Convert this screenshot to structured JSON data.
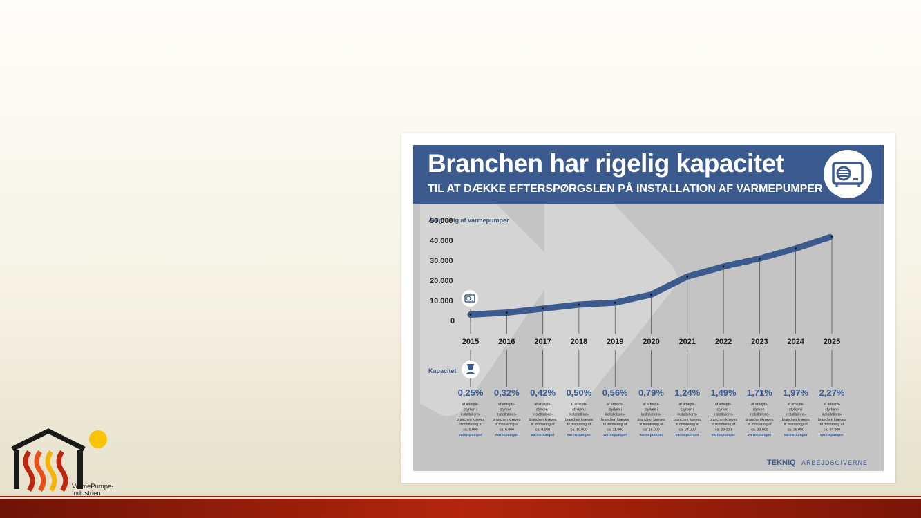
{
  "logo": {
    "text_line1": "VarmePumpe-",
    "text_line2": "Industrien"
  },
  "infographic": {
    "title": "Branchen har rigelig kapacitet",
    "subtitle": "TIL AT DÆKKE EFTERSPØRGSLEN PÅ INSTALLATION AF VARMEPUMPER",
    "header_icon": "heat-pump-icon",
    "brand": "TEKNIQ",
    "brand_suffix": "ARBEJDSGIVERNE"
  },
  "colors": {
    "accent": "#3b5a8e",
    "background": "#c4c4c4",
    "bar": "#b3250c"
  },
  "chart_data": {
    "type": "line",
    "ylabel": "Årligt salg af varmepumper",
    "ytick_labels": [
      "0",
      "10.000",
      "20.000",
      "30.000",
      "40.000",
      "50.000"
    ],
    "ylim": [
      0,
      50000
    ],
    "x": [
      "2015",
      "2016",
      "2017",
      "2018",
      "2019",
      "2020",
      "2021",
      "2022",
      "2023",
      "2024",
      "2025"
    ],
    "series": [
      {
        "style": "solid",
        "values": [
          5000,
          6000,
          8000,
          10000,
          11000,
          15000,
          24000,
          29000,
          null,
          null,
          null
        ]
      },
      {
        "style": "dashed",
        "values": [
          null,
          null,
          null,
          null,
          null,
          null,
          null,
          29000,
          33000,
          38000,
          44000
        ]
      }
    ],
    "capacity_label": "Kapacitet",
    "capacity": [
      {
        "year": "2015",
        "pct": "0,25%",
        "count": "ca. 5.000"
      },
      {
        "year": "2016",
        "pct": "0,32%",
        "count": "ca. 6.000"
      },
      {
        "year": "2017",
        "pct": "0,42%",
        "count": "ca. 8.000"
      },
      {
        "year": "2018",
        "pct": "0,50%",
        "count": "ca. 10.000"
      },
      {
        "year": "2019",
        "pct": "0,56%",
        "count": "ca. 11.000"
      },
      {
        "year": "2020",
        "pct": "0,79%",
        "count": "ca. 15.000"
      },
      {
        "year": "2021",
        "pct": "1,24%",
        "count": "ca. 24.000"
      },
      {
        "year": "2022",
        "pct": "1,49%",
        "count": "ca. 29.000"
      },
      {
        "year": "2023",
        "pct": "1,71%",
        "count": "ca. 33.000"
      },
      {
        "year": "2024",
        "pct": "1,97%",
        "count": "ca. 38.000"
      },
      {
        "year": "2025",
        "pct": "2,27%",
        "count": "ca. 44.000"
      }
    ],
    "desc_lines": [
      "af arbejds-",
      "styrken i",
      "installations-",
      "branchen kræves",
      "til montering af"
    ],
    "desc_unit": "varmepumper",
    "sales_icon": "heat-pump-icon",
    "capacity_icon": "worker-icon",
    "grid": false
  }
}
